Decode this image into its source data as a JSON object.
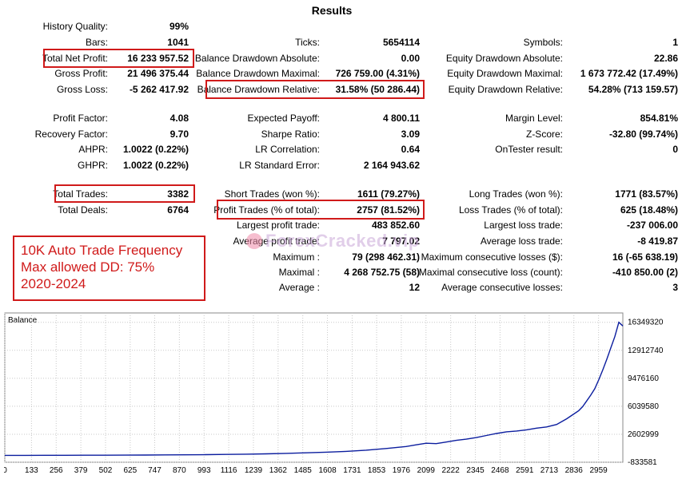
{
  "title": "Results",
  "stats": {
    "history_quality": {
      "label": "History Quality:",
      "value": "99%"
    },
    "bars": {
      "label": "Bars:",
      "value": "1041"
    },
    "ticks": {
      "label": "Ticks:",
      "value": "5654114"
    },
    "symbols": {
      "label": "Symbols:",
      "value": "1"
    },
    "total_net_profit": {
      "label": "Total Net Profit:",
      "value": "16 233 957.52"
    },
    "balance_dd_abs": {
      "label": "Balance Drawdown Absolute:",
      "value": "0.00"
    },
    "equity_dd_abs": {
      "label": "Equity Drawdown Absolute:",
      "value": "22.86"
    },
    "gross_profit": {
      "label": "Gross Profit:",
      "value": "21 496 375.44"
    },
    "balance_dd_max": {
      "label": "Balance Drawdown Maximal:",
      "value": "726 759.00 (4.31%)"
    },
    "equity_dd_max": {
      "label": "Equity Drawdown Maximal:",
      "value": "1 673 772.42 (17.49%)"
    },
    "gross_loss": {
      "label": "Gross Loss:",
      "value": "-5 262 417.92"
    },
    "balance_dd_rel": {
      "label": "Balance Drawdown Relative:",
      "value": "31.58% (50 286.44)"
    },
    "equity_dd_rel": {
      "label": "Equity Drawdown Relative:",
      "value": "54.28% (713 159.57)"
    },
    "profit_factor": {
      "label": "Profit Factor:",
      "value": "4.08"
    },
    "expected_payoff": {
      "label": "Expected Payoff:",
      "value": "4 800.11"
    },
    "margin_level": {
      "label": "Margin Level:",
      "value": "854.81%"
    },
    "recovery_factor": {
      "label": "Recovery Factor:",
      "value": "9.70"
    },
    "sharpe_ratio": {
      "label": "Sharpe Ratio:",
      "value": "3.09"
    },
    "z_score": {
      "label": "Z-Score:",
      "value": "-32.80 (99.74%)"
    },
    "ahpr": {
      "label": "AHPR:",
      "value": "1.0022 (0.22%)"
    },
    "lr_correlation": {
      "label": "LR Correlation:",
      "value": "0.64"
    },
    "ontester": {
      "label": "OnTester result:",
      "value": "0"
    },
    "ghpr": {
      "label": "GHPR:",
      "value": "1.0022 (0.22%)"
    },
    "lr_std_error": {
      "label": "LR Standard Error:",
      "value": "2 164 943.62"
    },
    "total_trades": {
      "label": "Total Trades:",
      "value": "3382"
    },
    "short_trades": {
      "label": "Short Trades (won %):",
      "value": "1611 (79.27%)"
    },
    "long_trades": {
      "label": "Long Trades (won %):",
      "value": "1771 (83.57%)"
    },
    "total_deals": {
      "label": "Total Deals:",
      "value": "6764"
    },
    "profit_trades": {
      "label": "Profit Trades (% of total):",
      "value": "2757 (81.52%)"
    },
    "loss_trades": {
      "label": "Loss Trades (% of total):",
      "value": "625 (18.48%)"
    },
    "largest_profit": {
      "label": "Largest profit trade:",
      "value": "483 852.60"
    },
    "largest_loss": {
      "label": "Largest loss trade:",
      "value": "-237 006.00"
    },
    "avg_profit": {
      "label": "Average profit trade:",
      "value": "7 797.02"
    },
    "avg_loss": {
      "label": "Average loss trade:",
      "value": "-8 419.87"
    },
    "max_consec": {
      "label": "Maximum :",
      "value": "79 (298 462.31)"
    },
    "max_consec_losses_money": {
      "label": "Maximum consecutive losses ($):",
      "value": "16 (-65 638.19)"
    },
    "maximal": {
      "label": "Maximal :",
      "value": "4 268 752.75 (58)"
    },
    "max_consec_loss_count": {
      "label": "Maximal consecutive loss (count):",
      "value": "-410 850.00 (2)"
    },
    "average": {
      "label": "Average :",
      "value": "12"
    },
    "avg_consec_losses": {
      "label": "Average consecutive losses:",
      "value": "3"
    }
  },
  "note": {
    "line1": "10K Auto Trade Frequency",
    "line2": "Max allowed DD: 75%",
    "line3": "2020-2024"
  },
  "watermark": {
    "text": "ForexCracked.vip"
  },
  "colors": {
    "highlight": "#d01a1a",
    "series": "#0b1d9e",
    "grid": "#c8c8c8"
  },
  "chart_data": {
    "type": "line",
    "title": "Balance",
    "x_ticks": [
      "0",
      "133",
      "256",
      "379",
      "502",
      "625",
      "747",
      "870",
      "993",
      "1116",
      "1239",
      "1362",
      "1485",
      "1608",
      "1731",
      "1853",
      "1976",
      "2099",
      "2222",
      "2345",
      "2468",
      "2591",
      "2713",
      "2836",
      "2959"
    ],
    "y_ticks": [
      "16349320",
      "12912740",
      "9476160",
      "6039580",
      "2602999",
      "-833581"
    ],
    "xlim": [
      0,
      3080
    ],
    "ylim": [
      -833581,
      17500000
    ],
    "series": [
      {
        "x": [
          0,
          100,
          200,
          300,
          400,
          500,
          600,
          700,
          800,
          900,
          1000,
          1100,
          1200,
          1300,
          1400,
          1500,
          1600,
          1700,
          1800,
          1900,
          2000,
          2050,
          2100,
          2150,
          2200,
          2250,
          2300,
          2350,
          2400,
          2450,
          2500,
          2550,
          2600,
          2650,
          2700,
          2750,
          2800,
          2830,
          2860,
          2880,
          2900,
          2920,
          2940,
          2960,
          2980,
          3000,
          3020,
          3040,
          3060,
          3080
        ],
        "y": [
          10000,
          12000,
          15000,
          20000,
          26000,
          33000,
          42000,
          52000,
          65000,
          80000,
          100000,
          125000,
          160000,
          200000,
          250000,
          320000,
          400000,
          500000,
          650000,
          850000,
          1100000,
          1300000,
          1500000,
          1450000,
          1650000,
          1850000,
          2000000,
          2200000,
          2450000,
          2700000,
          2900000,
          3000000,
          3150000,
          3350000,
          3500000,
          3800000,
          4500000,
          5000000,
          5500000,
          6000000,
          6700000,
          7400000,
          8200000,
          9300000,
          10500000,
          11800000,
          13200000,
          14600000,
          16350000,
          15900000
        ]
      }
    ]
  }
}
